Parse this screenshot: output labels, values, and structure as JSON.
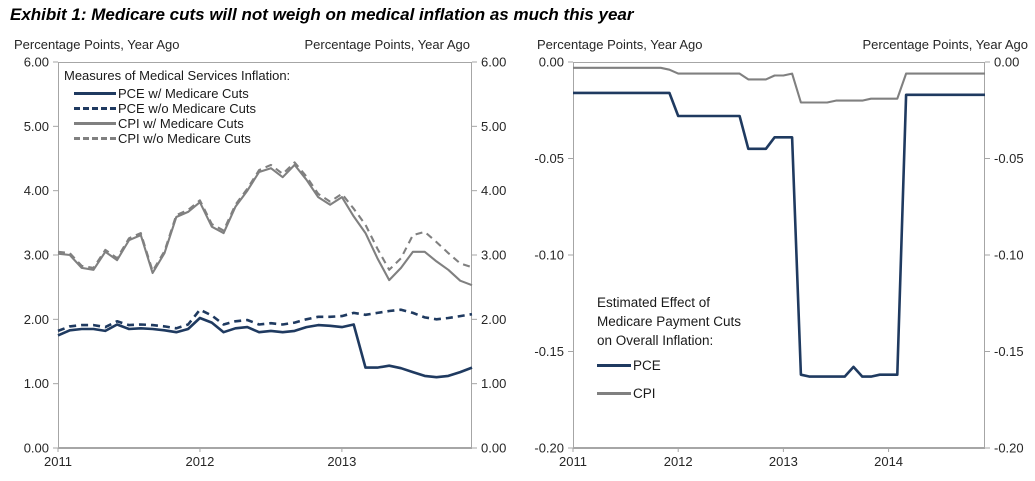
{
  "title": "Exhibit 1: Medicare cuts will not weigh on medical inflation as much this year",
  "axis_caption": "Percentage Points, Year Ago",
  "colors": {
    "pce": "#1f3a60",
    "cpi": "#808080",
    "frame": "#a6a6a6",
    "tick_text": "#262626",
    "title_text": "#000000"
  },
  "chart_data": [
    {
      "type": "line",
      "panel": "left",
      "legend_title": "Measures of Medical Services Inflation:",
      "x_tick_labels": [
        "2011",
        "2012",
        "2013"
      ],
      "x_tick_month_index": [
        0,
        12,
        24
      ],
      "months": 36,
      "ylim": [
        0,
        6
      ],
      "y_ticks": [
        "6.00",
        "5.00",
        "4.00",
        "3.00",
        "2.00",
        "1.00",
        "0.00"
      ],
      "y_tick_values": [
        6,
        5,
        4,
        3,
        2,
        1,
        0
      ],
      "grid": false,
      "legend_position": "top-left-inside",
      "series": [
        {
          "name": "PCE w/ Medicare Cuts",
          "color": "pce",
          "dash": false,
          "values": [
            1.75,
            1.83,
            1.85,
            1.85,
            1.82,
            1.92,
            1.85,
            1.86,
            1.85,
            1.83,
            1.8,
            1.85,
            2.02,
            1.95,
            1.8,
            1.86,
            1.88,
            1.8,
            1.82,
            1.8,
            1.82,
            1.88,
            1.91,
            1.9,
            1.88,
            1.92,
            1.25,
            1.25,
            1.28,
            1.24,
            1.18,
            1.12,
            1.1,
            1.12,
            1.18,
            1.25
          ]
        },
        {
          "name": "PCE w/o Medicare Cuts",
          "color": "pce",
          "dash": true,
          "values": [
            1.82,
            1.89,
            1.91,
            1.91,
            1.88,
            1.97,
            1.91,
            1.92,
            1.91,
            1.89,
            1.86,
            1.92,
            2.15,
            2.06,
            1.92,
            1.97,
            1.99,
            1.92,
            1.94,
            1.92,
            1.95,
            2.0,
            2.04,
            2.04,
            2.05,
            2.1,
            2.07,
            2.1,
            2.13,
            2.15,
            2.1,
            2.03,
            2.0,
            2.02,
            2.05,
            2.08
          ]
        },
        {
          "name": "CPI w/ Medicare Cuts",
          "color": "cpi",
          "dash": false,
          "values": [
            3.02,
            3.0,
            2.8,
            2.77,
            3.05,
            2.92,
            3.23,
            3.31,
            2.72,
            3.03,
            3.59,
            3.67,
            3.82,
            3.44,
            3.34,
            3.75,
            4.0,
            4.29,
            4.35,
            4.21,
            4.4,
            4.17,
            3.9,
            3.78,
            3.9,
            3.6,
            3.34,
            2.95,
            2.61,
            2.8,
            3.05,
            3.05,
            2.9,
            2.77,
            2.6,
            2.53
          ]
        },
        {
          "name": "CPI w/o Medicare Cuts",
          "color": "cpi",
          "dash": true,
          "values": [
            3.05,
            3.03,
            2.83,
            2.8,
            3.08,
            2.95,
            3.26,
            3.34,
            2.75,
            3.06,
            3.62,
            3.7,
            3.85,
            3.48,
            3.38,
            3.78,
            4.03,
            4.32,
            4.4,
            4.26,
            4.44,
            4.22,
            3.95,
            3.83,
            3.95,
            3.72,
            3.47,
            3.1,
            2.77,
            2.95,
            3.31,
            3.36,
            3.2,
            3.03,
            2.87,
            2.81
          ]
        }
      ]
    },
    {
      "type": "line",
      "panel": "right",
      "legend_lines": [
        "Estimated Effect of",
        "Medicare Payment Cuts",
        "on Overall Inflation:"
      ],
      "x_tick_labels": [
        "2011",
        "2012",
        "2013",
        "2014"
      ],
      "x_tick_month_index": [
        0,
        12,
        24,
        36
      ],
      "months": 48,
      "ylim": [
        -0.2,
        0
      ],
      "y_ticks": [
        "0.00",
        "-0.05",
        "-0.10",
        "-0.15",
        "-0.20"
      ],
      "y_tick_values": [
        0,
        -0.05,
        -0.1,
        -0.15,
        -0.2
      ],
      "grid": false,
      "legend_position": "center-left-inside",
      "series": [
        {
          "name": "PCE",
          "color": "pce",
          "dash": false,
          "values": [
            -0.016,
            -0.016,
            -0.016,
            -0.016,
            -0.016,
            -0.016,
            -0.016,
            -0.016,
            -0.016,
            -0.016,
            -0.016,
            -0.016,
            -0.028,
            -0.028,
            -0.028,
            -0.028,
            -0.028,
            -0.028,
            -0.028,
            -0.028,
            -0.045,
            -0.045,
            -0.045,
            -0.039,
            -0.039,
            -0.039,
            -0.162,
            -0.163,
            -0.163,
            -0.163,
            -0.163,
            -0.163,
            -0.158,
            -0.163,
            -0.163,
            -0.162,
            -0.162,
            -0.162,
            -0.017,
            -0.017,
            -0.017,
            -0.017,
            -0.017,
            -0.017,
            -0.017,
            -0.017,
            -0.017,
            -0.017
          ]
        },
        {
          "name": "CPI",
          "color": "cpi",
          "dash": false,
          "values": [
            -0.003,
            -0.003,
            -0.003,
            -0.003,
            -0.003,
            -0.003,
            -0.003,
            -0.003,
            -0.003,
            -0.003,
            -0.003,
            -0.004,
            -0.006,
            -0.006,
            -0.006,
            -0.006,
            -0.006,
            -0.006,
            -0.006,
            -0.006,
            -0.009,
            -0.009,
            -0.009,
            -0.007,
            -0.007,
            -0.006,
            -0.021,
            -0.021,
            -0.021,
            -0.021,
            -0.02,
            -0.02,
            -0.02,
            -0.02,
            -0.019,
            -0.019,
            -0.019,
            -0.019,
            -0.006,
            -0.006,
            -0.006,
            -0.006,
            -0.006,
            -0.006,
            -0.006,
            -0.006,
            -0.006,
            -0.006
          ]
        }
      ]
    }
  ]
}
